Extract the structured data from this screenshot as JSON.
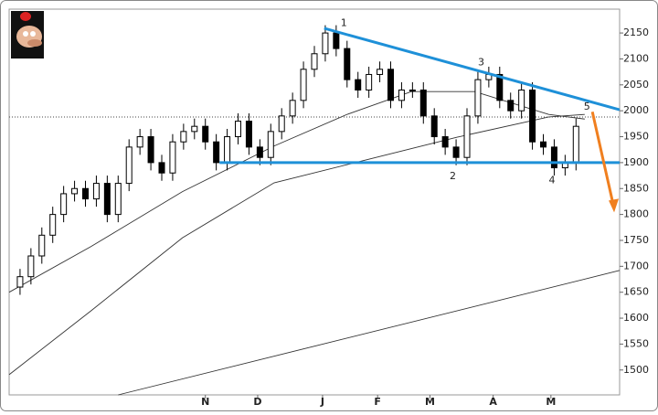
{
  "chart_data": {
    "type": "candlestick",
    "x": [
      0,
      1,
      2,
      3,
      4,
      5,
      6,
      7,
      8,
      9,
      10,
      11,
      12,
      13,
      14,
      15,
      16,
      17,
      18,
      19,
      20,
      21,
      22,
      23,
      24,
      25,
      26,
      27,
      28,
      29,
      30,
      31,
      32,
      33,
      34,
      35,
      36,
      37,
      38,
      39,
      40,
      41,
      42,
      43,
      44,
      45,
      46,
      47,
      48,
      49,
      50,
      51
    ],
    "open": [
      1660,
      1680,
      1720,
      1760,
      1800,
      1840,
      1850,
      1830,
      1860,
      1800,
      1860,
      1930,
      1950,
      1900,
      1880,
      1940,
      1960,
      1970,
      1940,
      1900,
      1950,
      1980,
      1930,
      1910,
      1960,
      1990,
      2020,
      2080,
      2110,
      2150,
      2120,
      2060,
      2040,
      2070,
      2080,
      2020,
      2040,
      2040,
      1990,
      1950,
      1930,
      1910,
      1990,
      2060,
      2070,
      2020,
      2000,
      2040,
      1940,
      1930,
      1890,
      1900
    ],
    "high": [
      1695,
      1735,
      1775,
      1815,
      1855,
      1865,
      1865,
      1875,
      1875,
      1875,
      1945,
      1965,
      1965,
      1915,
      1955,
      1975,
      1985,
      1985,
      1955,
      1965,
      1995,
      1995,
      1945,
      1975,
      2005,
      2035,
      2095,
      2125,
      2165,
      2165,
      2135,
      2075,
      2085,
      2095,
      2095,
      2055,
      2055,
      2055,
      2005,
      1965,
      1945,
      2005,
      2075,
      2085,
      2085,
      2035,
      2055,
      2055,
      1955,
      1945,
      1915,
      1985
    ],
    "low": [
      1645,
      1665,
      1705,
      1745,
      1785,
      1825,
      1815,
      1815,
      1785,
      1785,
      1845,
      1915,
      1885,
      1865,
      1865,
      1925,
      1945,
      1925,
      1885,
      1885,
      1935,
      1915,
      1895,
      1895,
      1945,
      1975,
      2005,
      2065,
      2095,
      2105,
      2045,
      2025,
      2025,
      2055,
      2005,
      2005,
      2025,
      1975,
      1935,
      1915,
      1895,
      1895,
      1975,
      2045,
      2005,
      1985,
      1985,
      1925,
      1915,
      1875,
      1875,
      1885
    ],
    "close": [
      1680,
      1720,
      1760,
      1800,
      1840,
      1850,
      1830,
      1860,
      1800,
      1860,
      1930,
      1950,
      1900,
      1880,
      1940,
      1960,
      1970,
      1940,
      1900,
      1950,
      1980,
      1930,
      1910,
      1960,
      1990,
      2020,
      2080,
      2110,
      2150,
      2120,
      2060,
      2040,
      2070,
      2080,
      2020,
      2040,
      2040,
      1990,
      1950,
      1930,
      1910,
      1990,
      2060,
      2070,
      2020,
      2000,
      2040,
      1940,
      1930,
      1890,
      1900,
      1970
    ],
    "series": [
      {
        "color": "#333333",
        "x": [
          -1,
          6.5,
          14.9,
          23.3,
          30,
          35.9,
          41.7,
          48.5,
          51.8
        ],
        "values": [
          1650,
          1738,
          1844,
          1932,
          1993,
          2037,
          2037,
          1993,
          1984
        ]
      },
      {
        "color": "#333333",
        "x": [
          -1,
          6.5,
          14.9,
          23.3,
          31.7,
          40.1,
          48.5,
          51.8
        ],
        "values": [
          1491,
          1614,
          1755,
          1861,
          1905,
          1949,
          1988,
          1993
        ]
      },
      {
        "color": "#333333",
        "x": [
          9,
          55
        ],
        "values": [
          1452,
          1692
        ]
      }
    ],
    "trendlines": [
      {
        "color": "#1e90d8",
        "x": [
          27.9,
          55
        ],
        "y": [
          2159,
          2002
        ]
      },
      {
        "color": "#1e90d8",
        "x": [
          18.3,
          55
        ],
        "y": [
          1900,
          1900
        ]
      },
      {
        "color": "#f07f1f",
        "x": [
          52.5,
          54.5
        ],
        "y": [
          1998,
          1811
        ]
      }
    ],
    "dotted_level": 1988,
    "annotations": [
      {
        "text": "1",
        "x": 29.7,
        "y": 2169
      },
      {
        "text": "2",
        "x": 39.7,
        "y": 1873
      },
      {
        "text": "3",
        "x": 42.3,
        "y": 2093
      },
      {
        "text": "4",
        "x": 48.8,
        "y": 1865
      },
      {
        "text": "5",
        "x": 52,
        "y": 2007
      }
    ],
    "xlim": [
      -1,
      55
    ],
    "xticks": [
      {
        "value": 17,
        "label": "N"
      },
      {
        "value": 21.8,
        "label": "D"
      },
      {
        "value": 27.75,
        "label": "J"
      },
      {
        "value": 32.8,
        "label": "F"
      },
      {
        "value": 37.6,
        "label": "M"
      },
      {
        "value": 43.4,
        "label": "A"
      },
      {
        "value": 48.7,
        "label": "M"
      }
    ],
    "ylim": [
      1452,
      2196
    ],
    "yticks": [
      1500,
      1550,
      1600,
      1650,
      1700,
      1750,
      1800,
      1850,
      1900,
      1950,
      2000,
      2050,
      2100,
      2150
    ]
  }
}
